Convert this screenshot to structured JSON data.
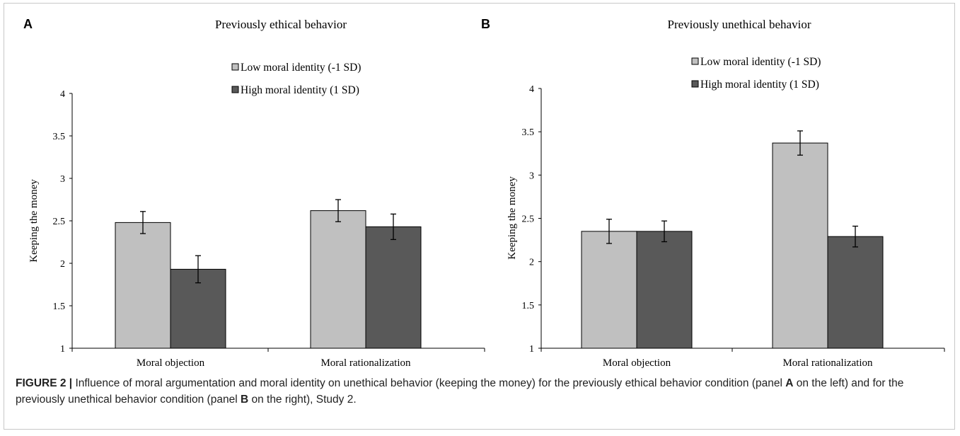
{
  "chart_data": [
    {
      "type": "bar",
      "panel_label": "A",
      "title": "Previously ethical behavior",
      "ylabel": "Keeping the money",
      "xlabel": "",
      "ylim": [
        1,
        4
      ],
      "yticks": [
        "1",
        "1.5",
        "2",
        "2.5",
        "3",
        "3.5",
        "4"
      ],
      "categories": [
        "Moral objection",
        "Moral rationalization"
      ],
      "series": [
        {
          "name": "Low moral identity (-1 SD)",
          "color": "#c0c0c0",
          "values": [
            2.48,
            2.62
          ],
          "errors": [
            0.13,
            0.13
          ]
        },
        {
          "name": "High moral identity (1 SD)",
          "color": "#595959",
          "values": [
            1.93,
            2.43
          ],
          "errors": [
            0.16,
            0.15
          ]
        }
      ],
      "legend_position": "top-right",
      "grid": false
    },
    {
      "type": "bar",
      "panel_label": "B",
      "title": "Previously unethical behavior",
      "ylabel": "Keeping the money",
      "xlabel": "",
      "ylim": [
        1,
        4
      ],
      "yticks": [
        "1",
        "1.5",
        "2",
        "2.5",
        "3",
        "3.5",
        "4"
      ],
      "categories": [
        "Moral objection",
        "Moral rationalization"
      ],
      "series": [
        {
          "name": "Low moral identity (-1 SD)",
          "color": "#c0c0c0",
          "values": [
            2.35,
            3.37
          ],
          "errors": [
            0.14,
            0.14
          ]
        },
        {
          "name": "High moral identity (1 SD)",
          "color": "#595959",
          "values": [
            2.35,
            2.29
          ],
          "errors": [
            0.12,
            0.12
          ]
        }
      ],
      "legend_position": "top-right",
      "grid": false
    }
  ],
  "caption": {
    "prefix": "FIGURE 2 | ",
    "part1": "Influence of moral argumentation and moral identity on unethical behavior (keeping the money) for the previously ethical behavior condition (panel ",
    "bold1": "A",
    "part2": " on the left) and for the previously unethical behavior condition (panel ",
    "bold2": "B",
    "part3": " on the right), Study 2."
  }
}
